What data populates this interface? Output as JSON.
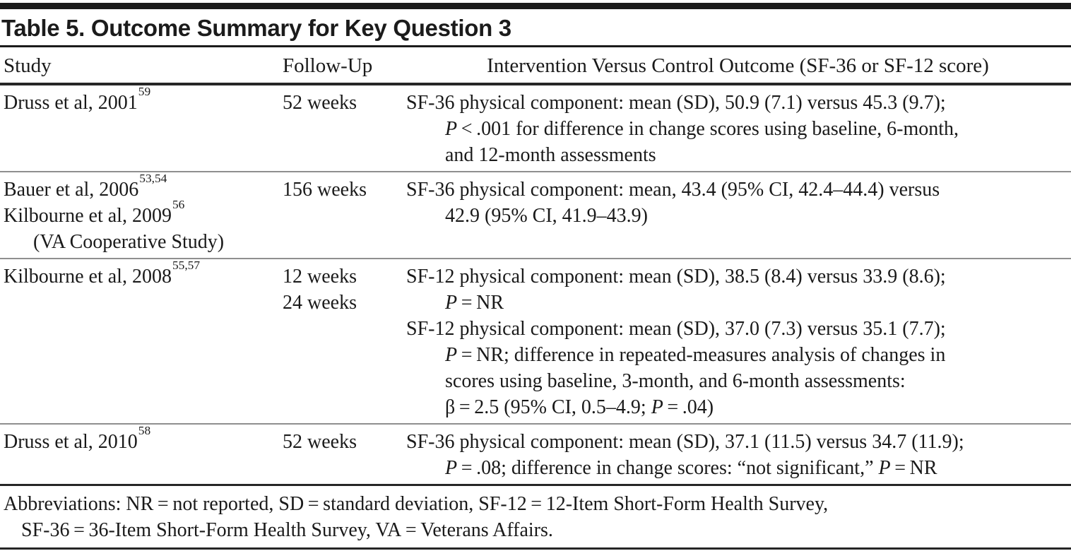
{
  "title": "Table 5. Outcome Summary for Key Question 3",
  "columns": [
    "Study",
    "Follow-Up",
    "Intervention Versus Control Outcome (SF-36 or SF-12 score)"
  ],
  "colors": {
    "text": "#1a1a1a",
    "heavy_rule": "#1b1b1b",
    "row_rule": "#8f8f8f"
  },
  "rows": [
    {
      "study": [
        {
          "text": "Druss et al, 2001",
          "sup": "59",
          "indent": 0
        }
      ],
      "followup": [
        "52 weeks"
      ],
      "outcome": [
        {
          "indent": 0,
          "segments": [
            {
              "t": "SF-36 physical component: mean (SD), 50.9 (7.1) versus 45.3 (9.7);"
            }
          ]
        },
        {
          "indent": 1,
          "segments": [
            {
              "t": "P",
              "i": true
            },
            {
              "t": " < .001 for difference in change scores using baseline, 6-month,"
            }
          ]
        },
        {
          "indent": 1,
          "segments": [
            {
              "t": "and 12-month assessments"
            }
          ]
        }
      ]
    },
    {
      "study": [
        {
          "text": "Bauer et al, 2006",
          "sup": "53,54",
          "indent": 0
        },
        {
          "text": "Kilbourne et al, 2009",
          "sup": "56",
          "indent": 0
        },
        {
          "text": "(VA Cooperative Study)",
          "sup": "",
          "indent": 1
        }
      ],
      "followup": [
        "156 weeks"
      ],
      "outcome": [
        {
          "indent": 0,
          "segments": [
            {
              "t": "SF-36 physical component: mean, 43.4 (95% CI, 42.4–44.4) versus"
            }
          ]
        },
        {
          "indent": 1,
          "segments": [
            {
              "t": "42.9 (95% CI, 41.9–43.9)"
            }
          ]
        }
      ]
    },
    {
      "study": [
        {
          "text": "Kilbourne et al, 2008",
          "sup": "55,57",
          "indent": 0
        }
      ],
      "followup": [
        "12 weeks",
        "24 weeks"
      ],
      "outcome": [
        {
          "indent": 0,
          "segments": [
            {
              "t": "SF-12 physical component: mean (SD), 38.5 (8.4) versus 33.9 (8.6);"
            }
          ]
        },
        {
          "indent": 1,
          "segments": [
            {
              "t": "P",
              "i": true
            },
            {
              "t": " = NR"
            }
          ]
        },
        {
          "indent": 0,
          "segments": [
            {
              "t": "SF-12 physical component: mean (SD), 37.0 (7.3) versus 35.1 (7.7);"
            }
          ]
        },
        {
          "indent": 1,
          "segments": [
            {
              "t": "P",
              "i": true
            },
            {
              "t": " = NR; difference in repeated-measures analysis of changes in"
            }
          ]
        },
        {
          "indent": 1,
          "segments": [
            {
              "t": "scores using baseline, 3-month, and 6-month assessments:"
            }
          ]
        },
        {
          "indent": 1,
          "segments": [
            {
              "t": "β = 2.5 (95% CI, 0.5–4.9; "
            },
            {
              "t": "P",
              "i": true
            },
            {
              "t": " = .04)"
            }
          ]
        }
      ]
    },
    {
      "study": [
        {
          "text": "Druss et al, 2010",
          "sup": "58",
          "indent": 0
        }
      ],
      "followup": [
        "52 weeks"
      ],
      "outcome": [
        {
          "indent": 0,
          "segments": [
            {
              "t": "SF-36 physical component: mean (SD), 37.1 (11.5) versus 34.7 (11.9);"
            }
          ]
        },
        {
          "indent": 1,
          "segments": [
            {
              "t": "P",
              "i": true
            },
            {
              "t": " = .08; difference in change scores: “not significant,” "
            },
            {
              "t": "P",
              "i": true
            },
            {
              "t": " = NR"
            }
          ]
        }
      ]
    }
  ],
  "footnote": {
    "lines": [
      {
        "indent": 0,
        "text": "Abbreviations: NR = not reported, SD = standard deviation, SF-12 = 12-Item Short-Form Health Survey,"
      },
      {
        "indent": 1,
        "text": "SF-36 = 36-Item Short-Form Health Survey, VA = Veterans Affairs."
      }
    ]
  }
}
